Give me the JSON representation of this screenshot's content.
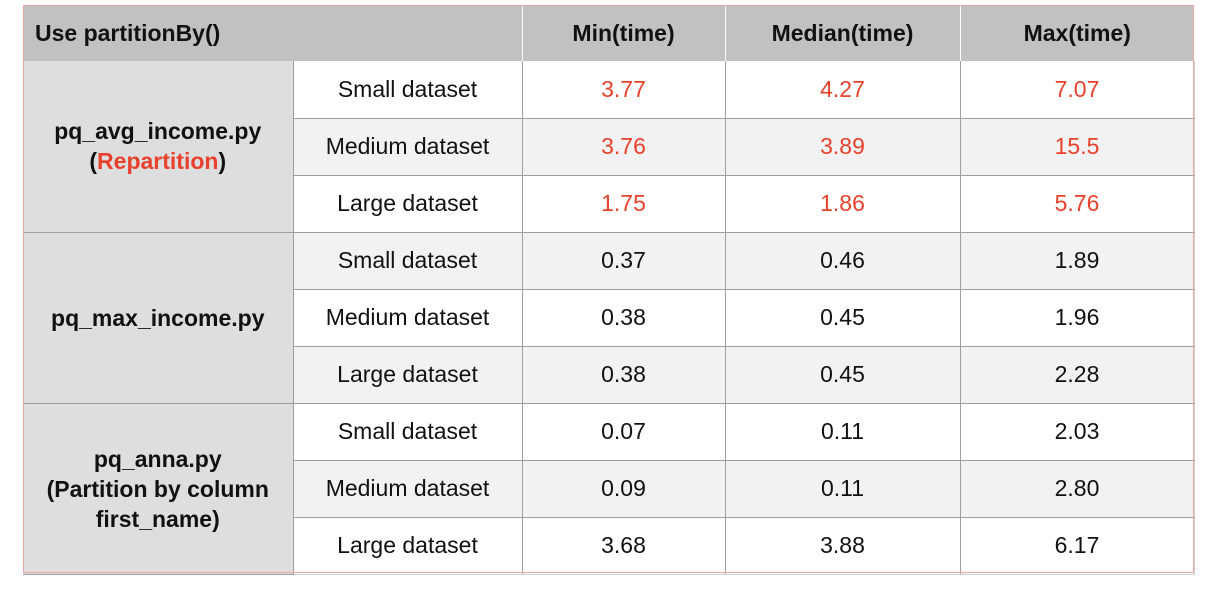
{
  "header": {
    "title": "Use partitionBy()",
    "min": "Min(time)",
    "median": "Median(time)",
    "max": "Max(time)"
  },
  "colors": {
    "highlight": "#e8412c",
    "header_bg": "#c0c2c2",
    "group_bg": "#dedede",
    "stripe_bg": "#f2f2f2"
  },
  "groups": [
    {
      "name": "pq_avg_income.py",
      "note_open": "(",
      "note_highlight": "Repartition",
      "note_close": ")",
      "rows": [
        {
          "dataset": "Small dataset",
          "min": "3.77",
          "median": "4.27",
          "max": "7.07",
          "highlight": true
        },
        {
          "dataset": "Medium dataset",
          "min": "3.76",
          "median": "3.89",
          "max": "15.5",
          "highlight": true
        },
        {
          "dataset": "Large dataset",
          "min": "1.75",
          "median": "1.86",
          "max": "5.76",
          "highlight": true
        }
      ]
    },
    {
      "name": "pq_max_income.py",
      "rows": [
        {
          "dataset": "Small dataset",
          "min": "0.37",
          "median": "0.46",
          "max": "1.89",
          "highlight": false
        },
        {
          "dataset": "Medium dataset",
          "min": "0.38",
          "median": "0.45",
          "max": "1.96",
          "highlight": false
        },
        {
          "dataset": "Large dataset",
          "min": "0.38",
          "median": "0.45",
          "max": "2.28",
          "highlight": false
        }
      ]
    },
    {
      "name": "pq_anna.py",
      "note_line1": "(Partition by column",
      "note_line2": "first_name)",
      "rows": [
        {
          "dataset": "Small dataset",
          "min": "0.07",
          "median": "0.11",
          "max": "2.03",
          "highlight": false
        },
        {
          "dataset": "Medium dataset",
          "min": "0.09",
          "median": "0.11",
          "max": "2.80",
          "highlight": false
        },
        {
          "dataset": "Large dataset",
          "min": "3.68",
          "median": "3.88",
          "max": "6.17",
          "highlight": false
        }
      ]
    }
  ]
}
